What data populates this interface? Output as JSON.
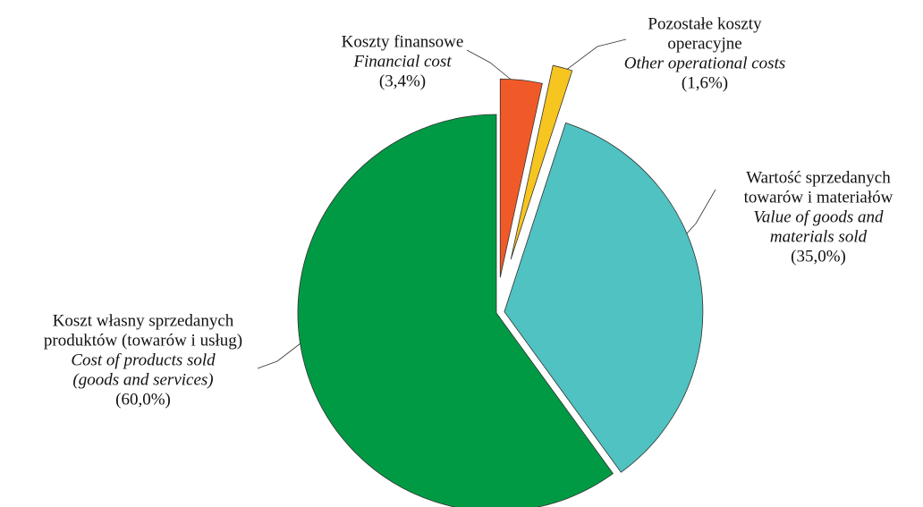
{
  "chart_data": {
    "type": "pie",
    "categories": [
      [
        "Koszty finansowe"
      ],
      [
        "Pozostałe koszty",
        "operacyjne"
      ],
      [
        "Wartość sprzedanych",
        "towarów i materiałów"
      ],
      [
        "Koszt własny sprzedanych",
        "produktów (towarów i usług)"
      ]
    ],
    "categories_en": [
      [
        "Financial cost"
      ],
      [
        "Other operational costs"
      ],
      [
        "Value of goods and",
        "materials sold"
      ],
      [
        "Cost of products sold",
        "(goods and  services)"
      ]
    ],
    "values": [
      3.4,
      1.6,
      35.0,
      60.0
    ],
    "value_labels": [
      "(3,4%)",
      "(1,6%)",
      "(35,0%)",
      "(60,0%)"
    ],
    "colors": [
      "#f05a28",
      "#f7c520",
      "#50c2c2",
      "#009a44"
    ]
  }
}
